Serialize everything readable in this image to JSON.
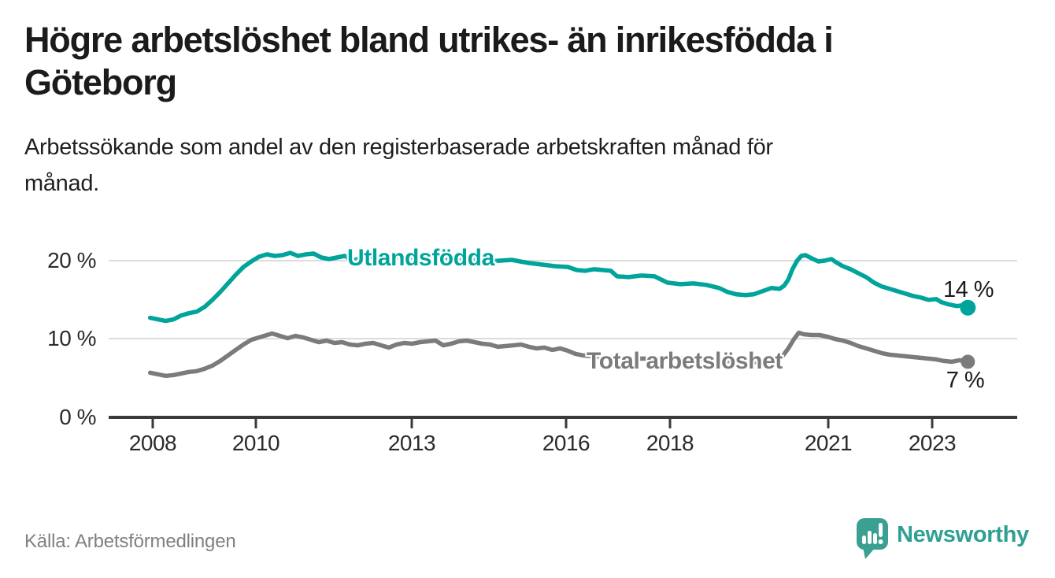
{
  "header": {
    "title_lines": [
      "Högre arbetslöshet bland utrikes- än inrikesfödda i",
      "Göteborg"
    ],
    "subtitle_lines": [
      "Arbetssökande som andel av den registerbaserade arbetskraften månad för",
      "månad."
    ]
  },
  "chart_data": {
    "type": "line",
    "title": "Högre arbetslöshet bland utrikes- än inrikesfödda i Göteborg",
    "xlabel": "",
    "ylabel": "Arbetssökande som andel av den registerbaserade arbetskraften (%)",
    "x_range": [
      2007.9,
      2024.6
    ],
    "ylim": [
      0,
      23
    ],
    "grid": "horizontal",
    "x_axis": {
      "ticks": [
        {
          "label": "2008",
          "year": 2008
        },
        {
          "label": "2010",
          "year": 2010
        },
        {
          "label": "2013",
          "year": 2013
        },
        {
          "label": "2016",
          "year": 2016
        },
        {
          "label": "2018",
          "year": 2018
        },
        {
          "label": "2021",
          "year": 2021
        },
        {
          "label": "2023",
          "year": 2023
        }
      ]
    },
    "y_axis": {
      "ticks": [
        {
          "label": "0 %",
          "value": 0
        },
        {
          "label": "10 %",
          "value": 10
        },
        {
          "label": "20 %",
          "value": 20
        }
      ]
    },
    "series": [
      {
        "name": "Utlandsfödda",
        "color": "#00a49a",
        "end_label": "14 %",
        "end_value": 14,
        "points": [
          [
            2007.95,
            12.7
          ],
          [
            2008.1,
            12.5
          ],
          [
            2008.25,
            12.3
          ],
          [
            2008.4,
            12.5
          ],
          [
            2008.55,
            13.0
          ],
          [
            2008.7,
            13.3
          ],
          [
            2008.85,
            13.5
          ],
          [
            2009.0,
            14.1
          ],
          [
            2009.15,
            15.0
          ],
          [
            2009.3,
            16.0
          ],
          [
            2009.45,
            17.1
          ],
          [
            2009.6,
            18.2
          ],
          [
            2009.75,
            19.2
          ],
          [
            2009.9,
            19.9
          ],
          [
            2010.05,
            20.5
          ],
          [
            2010.2,
            20.8
          ],
          [
            2010.35,
            20.6
          ],
          [
            2010.5,
            20.7
          ],
          [
            2010.65,
            21.0
          ],
          [
            2010.8,
            20.6
          ],
          [
            2010.95,
            20.8
          ],
          [
            2011.1,
            20.9
          ],
          [
            2011.25,
            20.4
          ],
          [
            2011.4,
            20.2
          ],
          [
            2011.55,
            20.4
          ],
          [
            2011.7,
            20.6
          ],
          [
            2011.85,
            20.0
          ],
          [
            2012.0,
            20.3
          ],
          [
            2012.2,
            20.5
          ],
          [
            2012.45,
            20.4
          ],
          [
            2012.7,
            20.5
          ],
          [
            2012.95,
            20.4
          ],
          [
            2013.2,
            20.5
          ],
          [
            2013.45,
            20.4
          ],
          [
            2013.7,
            20.3
          ],
          [
            2013.95,
            20.3
          ],
          [
            2014.2,
            20.1
          ],
          [
            2014.45,
            19.9
          ],
          [
            2014.7,
            20.0
          ],
          [
            2014.92,
            20.1
          ],
          [
            2015.08,
            19.9
          ],
          [
            2015.25,
            19.7
          ],
          [
            2015.5,
            19.5
          ],
          [
            2015.75,
            19.3
          ],
          [
            2016.0,
            19.2
          ],
          [
            2016.17,
            18.8
          ],
          [
            2016.33,
            18.7
          ],
          [
            2016.5,
            18.9
          ],
          [
            2016.67,
            18.8
          ],
          [
            2016.83,
            18.7
          ],
          [
            2016.95,
            18.0
          ],
          [
            2017.17,
            17.9
          ],
          [
            2017.42,
            18.1
          ],
          [
            2017.67,
            18.0
          ],
          [
            2017.92,
            17.2
          ],
          [
            2018.17,
            17.0
          ],
          [
            2018.42,
            17.1
          ],
          [
            2018.67,
            16.9
          ],
          [
            2018.92,
            16.5
          ],
          [
            2019.08,
            16.0
          ],
          [
            2019.25,
            15.7
          ],
          [
            2019.42,
            15.6
          ],
          [
            2019.58,
            15.7
          ],
          [
            2019.75,
            16.1
          ],
          [
            2019.92,
            16.5
          ],
          [
            2020.08,
            16.4
          ],
          [
            2020.17,
            16.8
          ],
          [
            2020.25,
            17.6
          ],
          [
            2020.33,
            18.9
          ],
          [
            2020.42,
            20.0
          ],
          [
            2020.5,
            20.6
          ],
          [
            2020.58,
            20.7
          ],
          [
            2020.7,
            20.3
          ],
          [
            2020.83,
            19.9
          ],
          [
            2020.95,
            20.0
          ],
          [
            2021.08,
            20.2
          ],
          [
            2021.17,
            19.8
          ],
          [
            2021.3,
            19.3
          ],
          [
            2021.45,
            18.9
          ],
          [
            2021.6,
            18.4
          ],
          [
            2021.75,
            17.9
          ],
          [
            2021.9,
            17.2
          ],
          [
            2022.05,
            16.7
          ],
          [
            2022.2,
            16.4
          ],
          [
            2022.35,
            16.1
          ],
          [
            2022.5,
            15.8
          ],
          [
            2022.65,
            15.5
          ],
          [
            2022.8,
            15.3
          ],
          [
            2022.95,
            15.0
          ],
          [
            2023.1,
            15.1
          ],
          [
            2023.2,
            14.7
          ],
          [
            2023.35,
            14.4
          ],
          [
            2023.5,
            14.2
          ],
          [
            2023.6,
            14.3
          ],
          [
            2023.71,
            14.0
          ]
        ]
      },
      {
        "name": "Total arbetslöshet",
        "color": "#7b7b7b",
        "end_label": "7 %",
        "end_value": 7,
        "points": [
          [
            2007.95,
            5.7
          ],
          [
            2008.1,
            5.5
          ],
          [
            2008.25,
            5.3
          ],
          [
            2008.4,
            5.4
          ],
          [
            2008.55,
            5.6
          ],
          [
            2008.7,
            5.8
          ],
          [
            2008.85,
            5.9
          ],
          [
            2009.0,
            6.2
          ],
          [
            2009.15,
            6.6
          ],
          [
            2009.3,
            7.2
          ],
          [
            2009.45,
            7.9
          ],
          [
            2009.6,
            8.6
          ],
          [
            2009.75,
            9.3
          ],
          [
            2009.9,
            9.9
          ],
          [
            2010.05,
            10.2
          ],
          [
            2010.2,
            10.5
          ],
          [
            2010.3,
            10.7
          ],
          [
            2010.45,
            10.4
          ],
          [
            2010.6,
            10.1
          ],
          [
            2010.75,
            10.4
          ],
          [
            2010.9,
            10.2
          ],
          [
            2011.05,
            9.9
          ],
          [
            2011.2,
            9.6
          ],
          [
            2011.35,
            9.8
          ],
          [
            2011.5,
            9.5
          ],
          [
            2011.65,
            9.6
          ],
          [
            2011.8,
            9.3
          ],
          [
            2011.95,
            9.2
          ],
          [
            2012.1,
            9.4
          ],
          [
            2012.25,
            9.5
          ],
          [
            2012.4,
            9.2
          ],
          [
            2012.55,
            8.9
          ],
          [
            2012.7,
            9.3
          ],
          [
            2012.85,
            9.5
          ],
          [
            2013.0,
            9.4
          ],
          [
            2013.15,
            9.6
          ],
          [
            2013.3,
            9.7
          ],
          [
            2013.45,
            9.8
          ],
          [
            2013.6,
            9.2
          ],
          [
            2013.75,
            9.4
          ],
          [
            2013.9,
            9.7
          ],
          [
            2014.05,
            9.8
          ],
          [
            2014.2,
            9.6
          ],
          [
            2014.35,
            9.4
          ],
          [
            2014.5,
            9.3
          ],
          [
            2014.65,
            9.0
          ],
          [
            2014.8,
            9.1
          ],
          [
            2014.95,
            9.2
          ],
          [
            2015.1,
            9.3
          ],
          [
            2015.25,
            9.0
          ],
          [
            2015.4,
            8.8
          ],
          [
            2015.55,
            8.9
          ],
          [
            2015.7,
            8.6
          ],
          [
            2015.85,
            8.8
          ],
          [
            2016.0,
            8.5
          ],
          [
            2016.15,
            8.1
          ],
          [
            2016.3,
            7.9
          ],
          [
            2016.45,
            7.8
          ],
          [
            2016.6,
            7.7
          ],
          [
            2016.8,
            7.7
          ],
          [
            2017.0,
            7.6
          ],
          [
            2017.25,
            7.5
          ],
          [
            2017.5,
            7.5
          ],
          [
            2017.75,
            7.5
          ],
          [
            2018.0,
            7.6
          ],
          [
            2018.25,
            7.5
          ],
          [
            2018.5,
            7.4
          ],
          [
            2018.75,
            7.3
          ],
          [
            2019.0,
            7.2
          ],
          [
            2019.25,
            7.1
          ],
          [
            2019.5,
            7.1
          ],
          [
            2019.75,
            7.0
          ],
          [
            2019.9,
            7.1
          ],
          [
            2020.05,
            7.3
          ],
          [
            2020.15,
            7.9
          ],
          [
            2020.25,
            8.8
          ],
          [
            2020.35,
            9.9
          ],
          [
            2020.45,
            10.8
          ],
          [
            2020.55,
            10.6
          ],
          [
            2020.7,
            10.5
          ],
          [
            2020.85,
            10.5
          ],
          [
            2021.0,
            10.3
          ],
          [
            2021.15,
            10.0
          ],
          [
            2021.3,
            9.8
          ],
          [
            2021.45,
            9.5
          ],
          [
            2021.6,
            9.1
          ],
          [
            2021.75,
            8.8
          ],
          [
            2021.9,
            8.5
          ],
          [
            2022.05,
            8.2
          ],
          [
            2022.2,
            8.0
          ],
          [
            2022.35,
            7.9
          ],
          [
            2022.5,
            7.8
          ],
          [
            2022.65,
            7.7
          ],
          [
            2022.8,
            7.6
          ],
          [
            2022.95,
            7.5
          ],
          [
            2023.1,
            7.4
          ],
          [
            2023.25,
            7.2
          ],
          [
            2023.4,
            7.1
          ],
          [
            2023.55,
            7.3
          ],
          [
            2023.71,
            7.1
          ]
        ]
      }
    ]
  },
  "footer": {
    "source": "Källa: Arbetsförmedlingen",
    "brand": "Newsworthy"
  },
  "colors": {
    "series_utlandsfodda": "#00a49a",
    "series_total": "#7b7b7b",
    "gridline": "#dcdcdc",
    "axis": "#3a3a3a",
    "title_text": "#1b1b1b",
    "source_text": "#808080",
    "brand_teal": "#2f9f92"
  }
}
